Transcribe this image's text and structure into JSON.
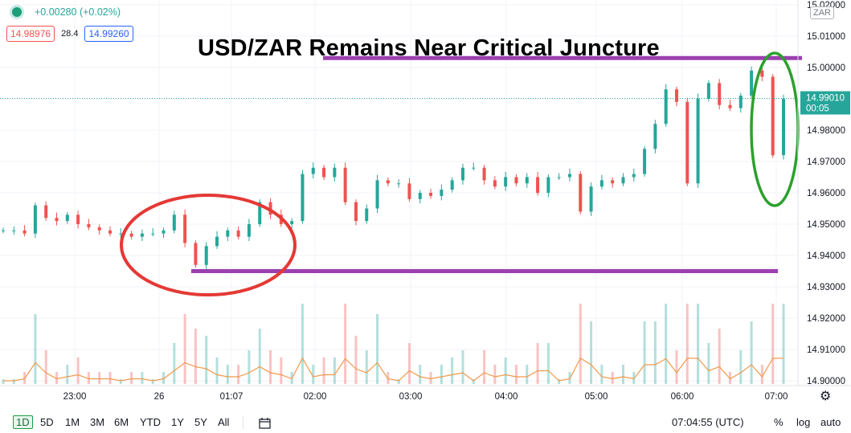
{
  "header": {
    "change_text": "+0.00280 (+0.02%)",
    "bid_price": "14.98976",
    "spread": "28.4",
    "ask_price": "14.99260",
    "currency_button": "ZAR"
  },
  "toolbar": {
    "timeframes": [
      "1D",
      "5D",
      "1M",
      "3M",
      "6M",
      "YTD",
      "1Y",
      "5Y",
      "All"
    ],
    "active_timeframe": "1D",
    "clock": "07:04:55 (UTC)",
    "percent_label": "%",
    "log_label": "log",
    "auto_label": "auto"
  },
  "colors": {
    "up": "#26a69a",
    "down": "#ef5350",
    "volume_ma": "#f2994a",
    "level_line": "#9c3fb0",
    "red_circle": "#e53935",
    "green_circle": "#2ca02c"
  },
  "chart_data": {
    "type": "line",
    "title": "USD/ZAR Remains Near Critical Juncture",
    "y_ticks": [
      "15.02000",
      "15.01000",
      "15.00000",
      "14.99000",
      "14.98000",
      "14.97000",
      "14.96000",
      "14.95000",
      "14.94000",
      "14.93000",
      "14.92000",
      "14.91000",
      "14.90000"
    ],
    "x_ticks": [
      "23:00",
      "26",
      "01:07",
      "02:00",
      "03:00",
      "04:00",
      "05:00",
      "06:00",
      "07:00"
    ],
    "ylim": [
      14.8985,
      15.0215
    ],
    "current_price": "14.99010",
    "countdown": "00:05",
    "levels": [
      {
        "name": "resistance",
        "value": 15.003
      },
      {
        "name": "support",
        "value": 14.935
      }
    ],
    "series": [
      {
        "values": [
          14.948,
          14.948,
          14.947,
          14.956,
          14.952,
          14.951,
          14.953,
          14.95,
          14.949,
          14.948,
          14.947,
          14.947,
          14.946,
          14.947,
          14.947,
          14.948,
          14.953,
          14.944,
          14.937,
          14.943,
          14.946,
          14.948,
          14.946,
          14.95,
          14.957,
          14.953,
          14.95,
          14.951,
          14.966,
          14.968,
          14.965,
          14.968,
          14.957,
          14.951,
          14.955,
          14.964,
          14.963,
          14.963,
          14.958,
          14.96,
          14.959,
          14.961,
          14.964,
          14.968,
          14.968,
          14.964,
          14.962,
          14.965,
          14.963,
          14.965,
          14.96,
          14.965,
          14.965,
          14.966,
          14.954,
          14.962,
          14.964,
          14.963,
          14.965,
          14.966,
          14.974,
          14.982,
          14.993,
          14.989,
          14.963,
          14.99,
          14.995,
          14.988,
          14.987,
          14.991,
          14.999,
          14.997,
          14.972,
          14.99
        ]
      }
    ]
  }
}
